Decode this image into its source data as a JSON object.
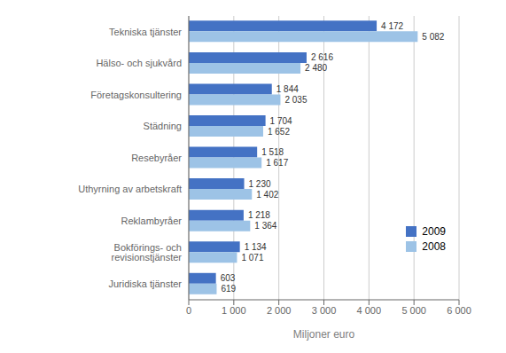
{
  "chart_data": {
    "type": "bar",
    "orientation": "horizontal",
    "categories": [
      "Juridiska tjänster",
      "Bokförings- och revisionstjänster",
      "Reklambyråer",
      "Uthyrning av arbetskraft",
      "Resebyråer",
      "Städning",
      "Företagskonsultering",
      "Hälso- och sjukvård",
      "Tekniska tjänster"
    ],
    "series": [
      {
        "name": "2009",
        "color": "#4472c4",
        "values": [
          603,
          1134,
          1218,
          1230,
          1518,
          1704,
          1844,
          2616,
          4172
        ],
        "value_labels": [
          "603",
          "1 134",
          "1 218",
          "1 230",
          "1 518",
          "1 704",
          "1 844",
          "2 616",
          "4 172"
        ]
      },
      {
        "name": "2008",
        "color": "#9dc3e6",
        "values": [
          619,
          1071,
          1364,
          1402,
          1617,
          1652,
          2035,
          2480,
          5082
        ],
        "value_labels": [
          "619",
          "1 071",
          "1 364",
          "1 402",
          "1 617",
          "1 652",
          "2 035",
          "2 480",
          "5 082"
        ]
      }
    ],
    "xlabel": "Miljoner euro",
    "xlim": [
      0,
      6000
    ],
    "xticks": [
      0,
      {
        "value": 1000,
        "label": "1 000"
      },
      {
        "value": 2000,
        "label": "2 000"
      },
      {
        "value": 3000,
        "label": "3 000"
      },
      {
        "value": 4000,
        "label": "4 000"
      },
      {
        "value": 5000,
        "label": "5 000"
      },
      {
        "value": 6000,
        "label": "6 000"
      }
    ],
    "grid": true,
    "legend": "lower right",
    "data_labels": true
  }
}
